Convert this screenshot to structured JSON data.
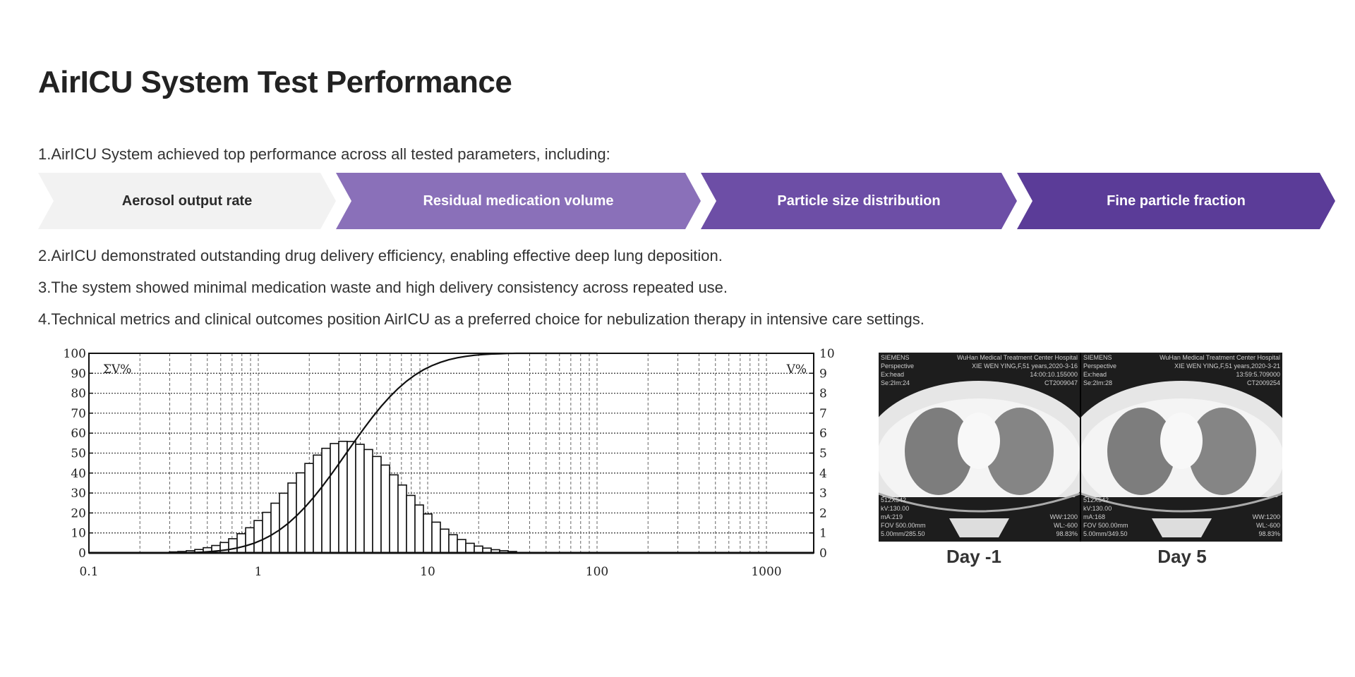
{
  "title": "AirICU System Test Performance",
  "intro": "1.AirICU System achieved top performance across all tested parameters, including:",
  "parameters": [
    {
      "label": "Aerosol output rate",
      "color": "#f2f2f2",
      "text_color": "#2b2b2b"
    },
    {
      "label": "Residual medication volume",
      "color": "#8a70b9",
      "text_color": "#ffffff"
    },
    {
      "label": "Particle size distribution",
      "color": "#6d4ea6",
      "text_color": "#ffffff"
    },
    {
      "label": "Fine particle fraction",
      "color": "#5b3c98",
      "text_color": "#ffffff"
    }
  ],
  "points": [
    "2.AirICU demonstrated outstanding drug delivery efficiency, enabling effective deep lung deposition.",
    "3.The system showed minimal medication waste and high delivery consistency across repeated use.",
    "4.Technical metrics and clinical outcomes position AirICU as a preferred choice for nebulization therapy in intensive care settings."
  ],
  "chart_data": {
    "type": "bar",
    "title": "",
    "xlabel": "",
    "left_label": "ΣV%",
    "right_label": "V%",
    "xscale": "log",
    "xlim": [
      0.1,
      1900
    ],
    "ylim_left": [
      0,
      100
    ],
    "ylim_right": [
      0,
      10
    ],
    "x_ticks": [
      "0.1",
      "1",
      "10",
      "100",
      "1000"
    ],
    "y_ticks_left": [
      "0",
      "10",
      "20",
      "30",
      "40",
      "50",
      "60",
      "70",
      "80",
      "90",
      "100"
    ],
    "y_ticks_right": [
      "0",
      "1",
      "2",
      "3",
      "4",
      "5",
      "6",
      "7",
      "8",
      "9",
      "10"
    ],
    "grid": true,
    "bin_start_log10_um": -0.525,
    "bins_per_decade": 20,
    "values_pct": [
      0.05,
      0.07,
      0.11,
      0.17,
      0.26,
      0.37,
      0.52,
      0.71,
      0.96,
      1.26,
      1.62,
      2.03,
      2.49,
      2.99,
      3.5,
      4.01,
      4.48,
      4.9,
      5.24,
      5.48,
      5.59,
      5.58,
      5.44,
      5.18,
      4.83,
      4.4,
      3.91,
      3.4,
      2.88,
      2.4,
      1.95,
      1.54,
      1.19,
      0.91,
      0.67,
      0.48,
      0.34,
      0.24,
      0.16,
      0.11,
      0.07
    ],
    "cumulative_end_um": 100
  },
  "ct": {
    "left": {
      "caption": "Day -1",
      "tl": [
        "SIEMENS",
        "Perspective",
        "Ex:head",
        "Se:2Im:24"
      ],
      "tr": [
        "WuHan Medical Treatment Center Hospital",
        "XIE WEN YING,F,51 years,2020-3-16",
        "14:00:10.155000",
        "CT2009047"
      ],
      "bl": [
        "512X542",
        "kV:130.00",
        "mA:219",
        "FOV 500.00mm",
        "5.00mm/285.50"
      ],
      "br": [
        "WW:1200",
        "WL:-600",
        "98.83%"
      ]
    },
    "right": {
      "caption": "Day 5",
      "tl": [
        "SIEMENS",
        "Perspective",
        "Ex:head",
        "Se:2Im:28"
      ],
      "tr": [
        "WuHan Medical Treatment Center Hospital",
        "XIE WEN YING,F,51 years,2020-3-21",
        "13:59:5.709000",
        "CT2009254"
      ],
      "bl": [
        "512X542",
        "kV:130.00",
        "mA:168",
        "FOV 500.00mm",
        "5.00mm/349.50"
      ],
      "br": [
        "WW:1200",
        "WL:-600",
        "98.83%"
      ]
    }
  }
}
